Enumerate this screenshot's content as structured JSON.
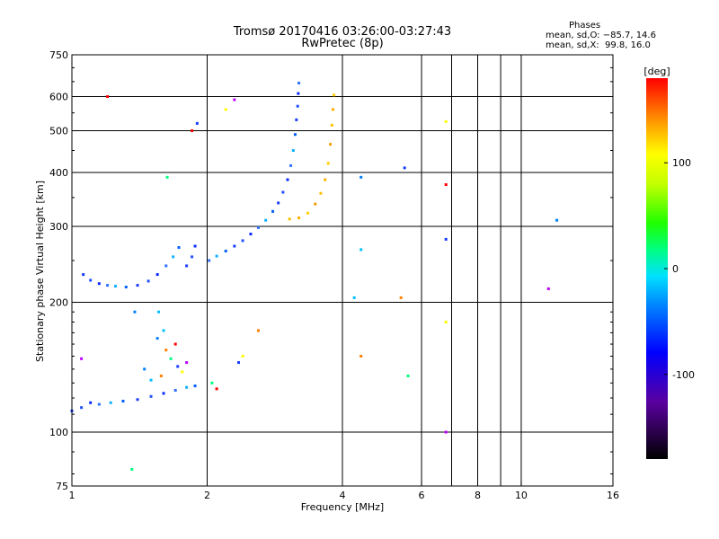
{
  "header": {
    "title_line1": "Tromsø 20170416 03:26:00-03:27:43",
    "title_line2": "RwPretec (8p)",
    "stats_title": "Phases",
    "stats_o": "mean, sd,O: −85.7, 14.6",
    "stats_x": "mean, sd,X:  99.8, 16.0"
  },
  "colors": {
    "blue_trace": "#1a3cff",
    "yellow_trace": "#ffc000",
    "grid": "#000000"
  },
  "chart_data": {
    "type": "scatter",
    "title": "Tromsø 20170416 03:26:00-03:27:43",
    "subtitle": "RwPretec (8p)",
    "xlabel": "Frequency [MHz]",
    "ylabel": "Stationary phase Virtual Height [km]",
    "xscale": "log",
    "yscale": "log",
    "xlim": [
      1,
      16
    ],
    "ylim": [
      75,
      750
    ],
    "xticks": [
      1,
      2,
      4,
      6,
      8,
      10,
      16
    ],
    "xtick_labels": [
      "1",
      "2",
      "4",
      "6",
      "8",
      "10",
      "16"
    ],
    "x_gridlines": [
      2,
      4,
      6,
      7,
      8,
      9,
      10
    ],
    "yticks": [
      75,
      100,
      200,
      300,
      400,
      500,
      600,
      750
    ],
    "ytick_labels": [
      "75",
      "100",
      "200",
      "300",
      "400",
      "500",
      "600",
      "750"
    ],
    "y_gridlines": [
      100,
      200,
      300,
      400,
      500,
      600
    ],
    "grid": true,
    "colorbar": {
      "label": "[deg]",
      "range": [
        -180,
        180
      ],
      "ticks": [
        100,
        0,
        -100
      ],
      "tick_labels": [
        "100",
        "0",
        "-100"
      ]
    },
    "series": [
      {
        "trace": "F-region trace (blue)",
        "points": [
          {
            "x": 1.06,
            "y": 232
          },
          {
            "x": 1.1,
            "y": 225
          },
          {
            "x": 1.15,
            "y": 221
          },
          {
            "x": 1.2,
            "y": 219
          },
          {
            "x": 1.25,
            "y": 218
          },
          {
            "x": 1.32,
            "y": 217
          },
          {
            "x": 1.4,
            "y": 219
          },
          {
            "x": 1.48,
            "y": 224
          },
          {
            "x": 1.55,
            "y": 232
          },
          {
            "x": 1.62,
            "y": 243
          },
          {
            "x": 1.68,
            "y": 255
          },
          {
            "x": 1.73,
            "y": 268
          },
          {
            "x": 1.8,
            "y": 243
          },
          {
            "x": 1.85,
            "y": 255
          },
          {
            "x": 1.88,
            "y": 270
          },
          {
            "x": 2.02,
            "y": 250
          },
          {
            "x": 2.1,
            "y": 256
          },
          {
            "x": 2.2,
            "y": 263
          },
          {
            "x": 2.3,
            "y": 270
          },
          {
            "x": 2.4,
            "y": 278
          },
          {
            "x": 2.5,
            "y": 288
          },
          {
            "x": 2.6,
            "y": 298
          },
          {
            "x": 2.7,
            "y": 310
          },
          {
            "x": 2.8,
            "y": 325
          },
          {
            "x": 2.88,
            "y": 340
          },
          {
            "x": 2.95,
            "y": 360
          },
          {
            "x": 3.02,
            "y": 385
          },
          {
            "x": 3.07,
            "y": 415
          },
          {
            "x": 3.11,
            "y": 450
          },
          {
            "x": 3.14,
            "y": 490
          },
          {
            "x": 3.16,
            "y": 530
          },
          {
            "x": 3.18,
            "y": 570
          },
          {
            "x": 3.19,
            "y": 610
          },
          {
            "x": 3.2,
            "y": 645
          }
        ]
      },
      {
        "trace": "F-region X trace (yellow)",
        "points": [
          {
            "x": 3.05,
            "y": 312
          },
          {
            "x": 3.2,
            "y": 314
          },
          {
            "x": 3.35,
            "y": 322
          },
          {
            "x": 3.48,
            "y": 338
          },
          {
            "x": 3.58,
            "y": 358
          },
          {
            "x": 3.66,
            "y": 385
          },
          {
            "x": 3.72,
            "y": 420
          },
          {
            "x": 3.76,
            "y": 465
          },
          {
            "x": 3.79,
            "y": 515
          },
          {
            "x": 3.81,
            "y": 560
          },
          {
            "x": 3.83,
            "y": 605
          }
        ]
      },
      {
        "trace": "lower trace (blue)",
        "points": [
          {
            "x": 1.0,
            "y": 112
          },
          {
            "x": 1.05,
            "y": 114
          },
          {
            "x": 1.1,
            "y": 117
          },
          {
            "x": 1.15,
            "y": 116
          },
          {
            "x": 1.22,
            "y": 117
          },
          {
            "x": 1.3,
            "y": 118
          },
          {
            "x": 1.4,
            "y": 119
          },
          {
            "x": 1.5,
            "y": 121
          },
          {
            "x": 1.6,
            "y": 123
          },
          {
            "x": 1.7,
            "y": 125
          },
          {
            "x": 1.8,
            "y": 127
          },
          {
            "x": 1.88,
            "y": 128
          }
        ]
      },
      {
        "trace": "scattered echoes",
        "points": [
          {
            "x": 1.55,
            "y": 165
          },
          {
            "x": 1.6,
            "y": 172
          },
          {
            "x": 1.62,
            "y": 155
          },
          {
            "x": 1.66,
            "y": 148
          },
          {
            "x": 1.7,
            "y": 160
          },
          {
            "x": 1.72,
            "y": 142
          },
          {
            "x": 1.76,
            "y": 138
          },
          {
            "x": 1.8,
            "y": 145
          },
          {
            "x": 1.45,
            "y": 140
          },
          {
            "x": 1.5,
            "y": 132
          },
          {
            "x": 1.58,
            "y": 135
          },
          {
            "x": 2.05,
            "y": 130
          },
          {
            "x": 2.1,
            "y": 126
          },
          {
            "x": 2.35,
            "y": 145
          },
          {
            "x": 2.4,
            "y": 150
          },
          {
            "x": 1.05,
            "y": 148
          },
          {
            "x": 1.38,
            "y": 190
          },
          {
            "x": 1.56,
            "y": 190
          },
          {
            "x": 2.6,
            "y": 172
          },
          {
            "x": 1.63,
            "y": 390
          },
          {
            "x": 1.85,
            "y": 500
          },
          {
            "x": 1.9,
            "y": 520
          },
          {
            "x": 2.2,
            "y": 560
          },
          {
            "x": 2.3,
            "y": 590
          },
          {
            "x": 4.4,
            "y": 390
          },
          {
            "x": 4.4,
            "y": 265
          },
          {
            "x": 4.4,
            "y": 150
          },
          {
            "x": 5.6,
            "y": 135
          },
          {
            "x": 6.8,
            "y": 375
          },
          {
            "x": 6.8,
            "y": 280
          },
          {
            "x": 6.8,
            "y": 180
          },
          {
            "x": 6.8,
            "y": 100
          },
          {
            "x": 12.0,
            "y": 310
          },
          {
            "x": 4.25,
            "y": 205
          },
          {
            "x": 5.4,
            "y": 205
          },
          {
            "x": 1.36,
            "y": 82
          },
          {
            "x": 1.2,
            "y": 600
          },
          {
            "x": 5.5,
            "y": 410
          },
          {
            "x": 6.8,
            "y": 525
          },
          {
            "x": 11.5,
            "y": 215
          }
        ]
      }
    ]
  }
}
